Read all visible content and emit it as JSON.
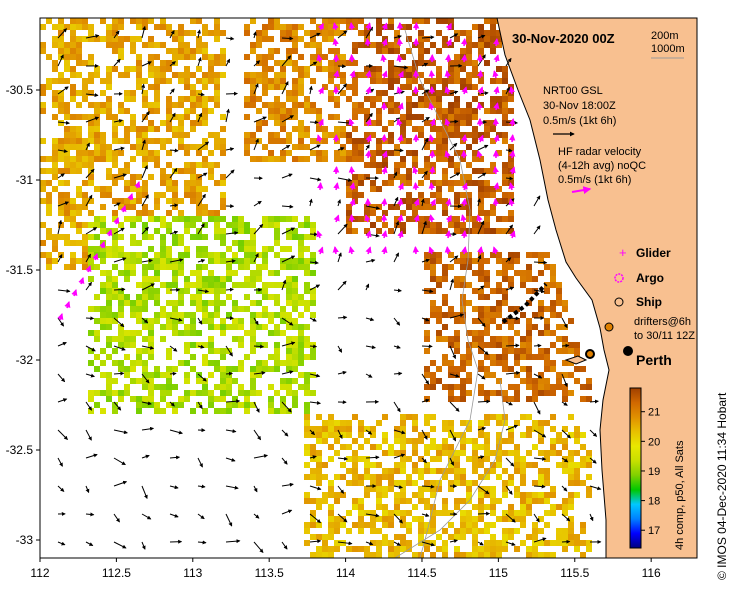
{
  "title": "30-Nov-2020 00Z",
  "depth_legend": [
    "200m",
    "1000m"
  ],
  "gsl_legend": {
    "lines": [
      "NRT00 GSL",
      "30-Nov 18:00Z",
      "0.5m/s (1kt 6h)"
    ],
    "color": "#000000"
  },
  "hf_radar_legend": {
    "lines": [
      "HF radar velocity",
      "(4-12h avg) noQC",
      "0.5m/s (1kt 6h)"
    ],
    "color": "#ff00ff"
  },
  "symbols_legend": [
    {
      "label": "Glider",
      "symbol": "plus",
      "color": "#ff00ff"
    },
    {
      "label": "Argo",
      "symbol": "circle-dotted",
      "color": "#ff00ff"
    },
    {
      "label": "Ship",
      "symbol": "circle",
      "color": "#000000"
    }
  ],
  "drifters_legend": [
    "drifters@6h",
    "to 30/11 12Z"
  ],
  "city": {
    "name": "Perth",
    "lon": 115.86,
    "lat": -31.95
  },
  "colorbar": {
    "ticks": [
      17,
      18,
      19,
      20,
      21
    ],
    "range": [
      16.4,
      21.8
    ],
    "caption": "4h comp, p50, All Sats",
    "colors": [
      "#000080",
      "#0000ff",
      "#0080ff",
      "#00c8ff",
      "#00c800",
      "#80d000",
      "#c8e000",
      "#e8e800",
      "#e8c000",
      "#e09000",
      "#d06800",
      "#a04000"
    ]
  },
  "credit": "© IMOS 04-Dec-2020 11:34 Hobart",
  "chart_data": {
    "type": "heatmap",
    "xlabel": "",
    "ylabel": "",
    "xlim": [
      112,
      116.3
    ],
    "ylim": [
      -33.1,
      -30.1
    ],
    "xticks": [
      "112",
      "112.5",
      "113",
      "113.5",
      "114",
      "114.5",
      "115",
      "115.5",
      "116"
    ],
    "yticks": [
      "-30.5",
      "-31",
      "-31.5",
      "-32",
      "-32.5",
      "-33"
    ],
    "land_color": "#f8c090",
    "regions": [
      {
        "lon": [
          114,
          115.1
        ],
        "lat": [
          -31.3,
          -30.1
        ],
        "sst": 21.4
      },
      {
        "lon": [
          113.3,
          114.0
        ],
        "lat": [
          -30.9,
          -30.1
        ],
        "sst": 20.9
      },
      {
        "lon": [
          112.0,
          113.2
        ],
        "lat": [
          -31.5,
          -30.1
        ],
        "sst": 20.6
      },
      {
        "lon": [
          112.3,
          113.8
        ],
        "lat": [
          -32.3,
          -31.2
        ],
        "sst": 19.2
      },
      {
        "lon": [
          114.5,
          115.6
        ],
        "lat": [
          -32.2,
          -31.4
        ],
        "sst": 21.3
      },
      {
        "lon": [
          113.7,
          115.6
        ],
        "lat": [
          -33.1,
          -32.3
        ],
        "sst": 20.4
      }
    ]
  }
}
